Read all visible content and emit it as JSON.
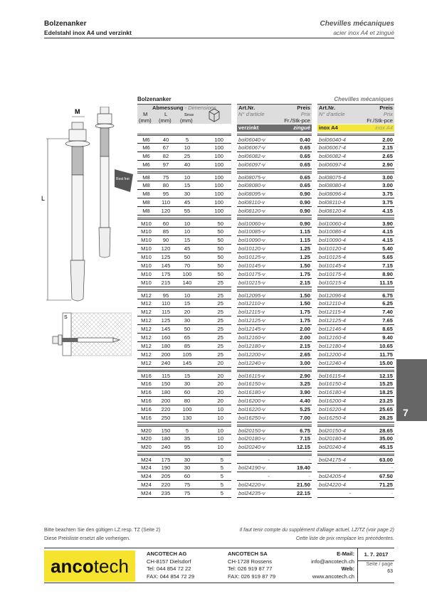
{
  "header": {
    "title_de": "Bolzenanker",
    "subtitle_de": "Edelstahl inox A4 und verzinkt",
    "title_fr": "Chevilles mécaniques",
    "subtitle_fr": "acier inox A4 et zingué"
  },
  "table": {
    "title_de": "Bolzenanker",
    "title_fr": "Chevilles mécaniques",
    "dim_header": "Abmessung",
    "dim_header_fr": "- Dimensions",
    "col_m": "M",
    "col_l": "L",
    "col_s": "s",
    "col_s_sub": "max",
    "unit": "(mm)",
    "pack_icon": "box-icon",
    "art_label": "Art.Nr.",
    "art_label_fr": "N° d'article",
    "price_label": "Preis",
    "price_label_fr": "Prix",
    "price_unit": "Fr./Stk-pce",
    "zn_de": "verzinkt",
    "zn_fr": "zingué",
    "a4_de": "inox A4",
    "a4_fr": "inox A4",
    "groups": [
      [
        [
          "M6",
          "40",
          "5",
          "100",
          "bol06040-v",
          "0.40",
          "bol06040-4",
          "2.00"
        ],
        [
          "M6",
          "67",
          "10",
          "100",
          "bol06067-v",
          "0.65",
          "bol06067-4",
          "2.15"
        ],
        [
          "M6",
          "82",
          "25",
          "100",
          "bol06082-v",
          "0.65",
          "bol06082-4",
          "2.65"
        ],
        [
          "M6",
          "97",
          "40",
          "100",
          "bol06097-v",
          "0.65",
          "bol06097-4",
          "2.90"
        ]
      ],
      [
        [
          "M8",
          "75",
          "10",
          "100",
          "bol08075-v",
          "0.65",
          "bol08075-4",
          "3.00"
        ],
        [
          "M8",
          "80",
          "15",
          "100",
          "bol08080-v",
          "0.65",
          "bol08080-4",
          "3.00"
        ],
        [
          "M8",
          "95",
          "30",
          "100",
          "bol08095-v",
          "0.90",
          "bol08096-4",
          "3.75"
        ],
        [
          "M8",
          "110",
          "45",
          "100",
          "bol08110-v",
          "0.90",
          "bol08110-4",
          "3.75"
        ],
        [
          "M8",
          "120",
          "55",
          "100",
          "bol08120-v",
          "0.90",
          "bol08120-4",
          "4.15"
        ]
      ],
      [
        [
          "M10",
          "60",
          "10",
          "50",
          "bol10060-v",
          "0.90",
          "bol10060-4",
          "3.90"
        ],
        [
          "M10",
          "85",
          "10",
          "50",
          "bol10085-v",
          "1.15",
          "bol10086-4",
          "4.15"
        ],
        [
          "M10",
          "90",
          "15",
          "50",
          "bol10090-v",
          "1.15",
          "bol10090-4",
          "4.15"
        ],
        [
          "M10",
          "120",
          "45",
          "50",
          "bol10120-v",
          "1.25",
          "bol10120-4",
          "5.40"
        ],
        [
          "M10",
          "125",
          "50",
          "50",
          "bol10125-v",
          "1.25",
          "bol10125-4",
          "5.65"
        ],
        [
          "M10",
          "145",
          "70",
          "50",
          "bol10145-v",
          "1.50",
          "bol10145-4",
          "7.15"
        ],
        [
          "M10",
          "175",
          "100",
          "50",
          "bol10175-v",
          "1.75",
          "bol10175-4",
          "8.90"
        ],
        [
          "M10",
          "215",
          "140",
          "25",
          "bol10215-v",
          "2.15",
          "bol10215-4",
          "11.15"
        ]
      ],
      [
        [
          "M12",
          "95",
          "10",
          "25",
          "bol12095-v",
          "1.50",
          "bol12096-4",
          "6.75"
        ],
        [
          "M12",
          "110",
          "15",
          "25",
          "bol12110-v",
          "1.50",
          "bol12110-4",
          "6.25"
        ],
        [
          "M12",
          "115",
          "20",
          "25",
          "bol12115-v",
          "1.75",
          "bol12115-4",
          "7.40"
        ],
        [
          "M12",
          "125",
          "30",
          "25",
          "bol12125-v",
          "1.75",
          "bol12125-4",
          "7.65"
        ],
        [
          "M12",
          "145",
          "50",
          "25",
          "bol12145-v",
          "2.00",
          "bol12146-4",
          "8.65"
        ],
        [
          "M12",
          "160",
          "65",
          "25",
          "bol12160-v",
          "2.00",
          "bol12160-4",
          "9.40"
        ],
        [
          "M12",
          "180",
          "85",
          "25",
          "bol12180-v",
          "2.15",
          "bol12180-4",
          "10.65"
        ],
        [
          "M12",
          "200",
          "105",
          "25",
          "bol12200-v",
          "2.65",
          "bol12200-4",
          "11.75"
        ],
        [
          "M12",
          "240",
          "145",
          "20",
          "bol12240-v",
          "3.00",
          "bol12240-4",
          "15.00"
        ]
      ],
      [
        [
          "M16",
          "115",
          "15",
          "20",
          "bol16115-v",
          "2.90",
          "bol16115-4",
          "12.15"
        ],
        [
          "M16",
          "150",
          "30",
          "20",
          "bol16150-v",
          "3.25",
          "bol16150-4",
          "15.25"
        ],
        [
          "M16",
          "180",
          "60",
          "20",
          "bol16180-v",
          "3.90",
          "bol16180-4",
          "18.25"
        ],
        [
          "M16",
          "200",
          "80",
          "20",
          "bol16200-v",
          "4.40",
          "bol16200-4",
          "23.25"
        ],
        [
          "M16",
          "220",
          "100",
          "10",
          "bol16220-v",
          "5.25",
          "bol16220-4",
          "25.65"
        ],
        [
          "M16",
          "250",
          "130",
          "10",
          "bol16250-v",
          "7.00",
          "bol16250-4",
          "28.25"
        ]
      ],
      [
        [
          "M20",
          "150",
          "5",
          "10",
          "bol20150-v",
          "6.75",
          "bol20150-4",
          "28.65"
        ],
        [
          "M20",
          "180",
          "35",
          "10",
          "bol20180-v",
          "7.15",
          "bol20180-4",
          "35.00"
        ],
        [
          "M20",
          "240",
          "95",
          "10",
          "bol20240-v",
          "12.15",
          "bol20240-4",
          "45.15"
        ]
      ],
      [
        [
          "M24",
          "175",
          "30",
          "5",
          "-",
          "-",
          "bol24175-4",
          "63.00"
        ],
        [
          "M24",
          "190",
          "30",
          "5",
          "bol24190-v",
          "19.40",
          "-",
          "-"
        ],
        [
          "M24",
          "205",
          "60",
          "5",
          "-",
          "-",
          "bol24205-4",
          "67.50"
        ],
        [
          "M24",
          "220",
          "75",
          "5",
          "bol24220-v",
          "21.50",
          "bol24220-4",
          "71.25"
        ],
        [
          "M24",
          "235",
          "75",
          "5",
          "bol24235-v",
          "22.15",
          "-",
          "-"
        ]
      ]
    ]
  },
  "drawing": {
    "label_m": "M",
    "label_l": "L",
    "label_s": "S",
    "badge": "Rost frei"
  },
  "chapter_tab": "7",
  "notes": {
    "de1": "Bitte beachten Sie den gültigen LZ resp. TZ (Seite 2)",
    "de2": "Diese Preisliste ersetzt alle vorherigen.",
    "fr1": "Il faut tenir compte du supplément d'alliage actuel, LZ/TZ (voir page 2)",
    "fr2": "Cette liste de prix remplace les précédentes."
  },
  "footer": {
    "logo_bold": "anco",
    "logo_light": "tech",
    "ag": {
      "name": "ANCOTECH AG",
      "city": "CH-8157 Dielsdorf",
      "tel": "Tel:  044 854 72 22",
      "fax": "FAX: 044 854 72 29"
    },
    "sa": {
      "name": "ANCOTECH SA",
      "city": "CH-1728 Rossens",
      "tel": "Tel:   026 919 87 77",
      "fax": "FAX: 026 919 87 79"
    },
    "email_label": "E-Mail:",
    "email": "info@ancotech.ch",
    "web_label": "Web:",
    "web": "www.ancotech.ch",
    "date": "1. 7. 2017",
    "page_label": "Seite / page",
    "page": "63"
  },
  "colors": {
    "zinc_bar": "#6e6e6e",
    "inox_bar": "#f3e53a",
    "logo": "#f6e32e",
    "tab": "#666666"
  }
}
